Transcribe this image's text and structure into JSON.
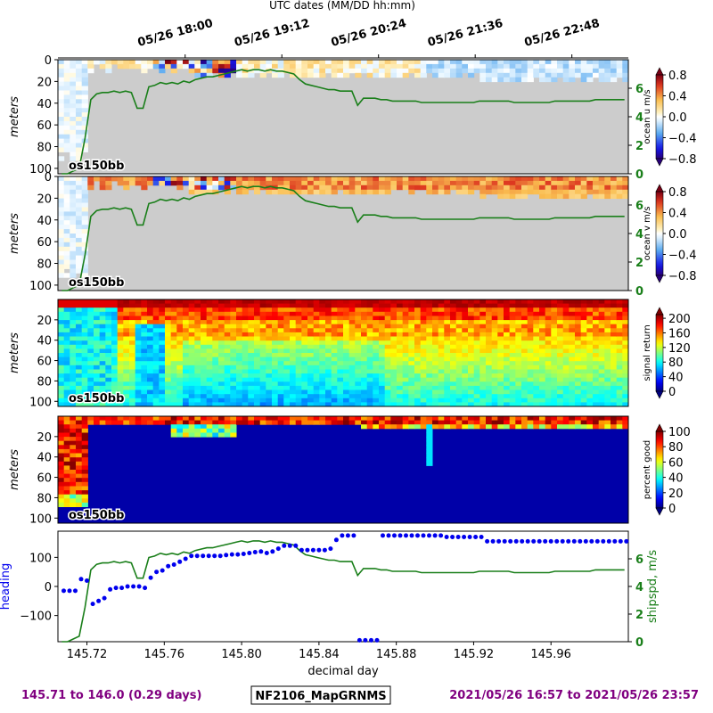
{
  "top_axis": {
    "label": "UTC dates (MM/DD hh:mm)",
    "ticks": [
      {
        "x": 145.7708,
        "label": "05/26 18:00"
      },
      {
        "x": 145.8208,
        "label": "05/26 19:12"
      },
      {
        "x": 145.8708,
        "label": "05/26 20:24"
      },
      {
        "x": 145.9208,
        "label": "05/26 21:36"
      },
      {
        "x": 145.9708,
        "label": "05/26 22:48"
      }
    ]
  },
  "footer": {
    "range_days": "145.71 to 146.0 (0.29 days)",
    "cruise": "NF2106_MapGRNMS",
    "range_dates": "2021/05/26 16:57 to 2021/05/26 23:57"
  },
  "colors": {
    "ship_speed": "#1a7f1a",
    "heading": "#0000ee",
    "no_data": "#cccccc",
    "footer_text": "#800080"
  },
  "chart_data": [
    {
      "type": "heatmap",
      "panel": "ocean_u",
      "instrument_label": "os150bb",
      "ylabel": "meters",
      "yticks": [
        0,
        20,
        40,
        60,
        80,
        100
      ],
      "ylim": [
        105,
        0
      ],
      "xlim": [
        145.705,
        146.0
      ],
      "colorbar": {
        "label": "ocean u m/s",
        "ticks": [
          "0.8",
          "0.4",
          "0.0",
          "−0.4",
          "−0.8"
        ],
        "range": [
          -0.8,
          0.8
        ],
        "colormap": "blue-white-red"
      },
      "right_axis": {
        "label": "",
        "ticks": [
          "0",
          "2",
          "4",
          "6"
        ],
        "range": [
          0,
          8
        ]
      }
    },
    {
      "type": "heatmap",
      "panel": "ocean_v",
      "instrument_label": "os150bb",
      "ylabel": "meters",
      "yticks": [
        0,
        20,
        40,
        60,
        80,
        100
      ],
      "ylim": [
        105,
        0
      ],
      "xlim": [
        145.705,
        146.0
      ],
      "colorbar": {
        "label": "ocean v m/s",
        "ticks": [
          "0.8",
          "0.4",
          "0.0",
          "−0.4",
          "−0.8"
        ],
        "range": [
          -0.8,
          0.8
        ],
        "colormap": "blue-white-red"
      },
      "right_axis": {
        "label": "",
        "ticks": [
          "0",
          "2",
          "4",
          "6"
        ],
        "range": [
          0,
          8
        ]
      }
    },
    {
      "type": "heatmap",
      "panel": "signal_return",
      "instrument_label": "os150bb",
      "ylabel": "meters",
      "yticks": [
        20,
        40,
        60,
        80,
        100
      ],
      "ylim": [
        105,
        0
      ],
      "xlim": [
        145.705,
        146.0
      ],
      "colorbar": {
        "label": "signal return",
        "ticks": [
          "200",
          "160",
          "120",
          "80",
          "40",
          "0"
        ],
        "range": [
          0,
          210
        ],
        "colormap": "jet"
      }
    },
    {
      "type": "heatmap",
      "panel": "percent_good",
      "instrument_label": "os150bb",
      "ylabel": "meters",
      "yticks": [
        20,
        40,
        60,
        80,
        100
      ],
      "ylim": [
        105,
        0
      ],
      "xlim": [
        145.705,
        146.0
      ],
      "colorbar": {
        "label": "percent good",
        "ticks": [
          "100",
          "80",
          "60",
          "40",
          "20",
          "0"
        ],
        "range": [
          0,
          100
        ],
        "colormap": "jet"
      }
    },
    {
      "type": "scatter",
      "panel": "heading_shipspd",
      "xlabel": "decimal day",
      "xticks": [
        "145.72",
        "145.76",
        "145.80",
        "145.84",
        "145.88",
        "145.92",
        "145.96"
      ],
      "xtick_values": [
        145.72,
        145.76,
        145.8,
        145.84,
        145.88,
        145.92,
        145.96
      ],
      "xlim": [
        145.705,
        146.0
      ],
      "ylabel": "heading",
      "yticks": [
        "100",
        "0",
        "−100"
      ],
      "ytick_values": [
        100,
        0,
        -100
      ],
      "ylim": [
        -190,
        190
      ],
      "right_ylabel": "shipspd, m/s",
      "right_yticks": [
        "0",
        "2",
        "4",
        "6"
      ],
      "right_ylim": [
        0,
        8
      ],
      "series": [
        {
          "name": "heading",
          "style": "dots",
          "x": [
            145.708,
            145.711,
            145.714,
            145.717,
            145.72,
            145.723,
            145.726,
            145.729,
            145.732,
            145.735,
            145.738,
            145.741,
            145.744,
            145.747,
            145.75,
            145.753,
            145.756,
            145.759,
            145.762,
            145.765,
            145.768,
            145.771,
            145.774,
            145.777,
            145.78,
            145.783,
            145.786,
            145.789,
            145.792,
            145.795,
            145.798,
            145.801,
            145.804,
            145.807,
            145.81,
            145.813,
            145.816,
            145.819,
            145.822,
            145.825,
            145.828,
            145.831,
            145.834,
            145.837,
            145.84,
            145.843,
            145.846,
            145.849,
            145.852,
            145.855,
            145.858,
            145.861,
            145.864,
            145.867,
            145.87,
            145.873,
            145.876,
            145.879,
            145.882,
            145.885,
            145.888,
            145.891,
            145.894,
            145.897,
            145.9,
            145.903,
            145.906,
            145.909,
            145.912,
            145.915,
            145.918,
            145.921,
            145.924,
            145.927,
            145.93,
            145.933,
            145.936,
            145.939,
            145.942,
            145.945,
            145.948,
            145.951,
            145.954,
            145.957,
            145.96,
            145.963,
            145.966,
            145.969,
            145.972,
            145.975,
            145.978,
            145.981,
            145.984,
            145.987,
            145.99,
            145.993,
            145.996,
            145.999
          ],
          "y": [
            -15,
            -15,
            -15,
            25,
            20,
            -60,
            -50,
            -40,
            -10,
            -5,
            -5,
            0,
            0,
            0,
            -5,
            30,
            50,
            55,
            70,
            75,
            85,
            95,
            105,
            105,
            105,
            105,
            105,
            105,
            108,
            110,
            110,
            112,
            115,
            118,
            120,
            115,
            120,
            130,
            140,
            140,
            140,
            125,
            125,
            125,
            125,
            125,
            130,
            160,
            175,
            175,
            175,
            -185,
            -185,
            -185,
            -185,
            175,
            175,
            175,
            175,
            175,
            175,
            175,
            175,
            175,
            175,
            175,
            170,
            170,
            170,
            170,
            170,
            170,
            170,
            155,
            155,
            155,
            155,
            155,
            155,
            155,
            155,
            155,
            155,
            155,
            155,
            155,
            155,
            155,
            155,
            155,
            155,
            155,
            155,
            155,
            155,
            155,
            155,
            155
          ]
        },
        {
          "name": "shipspd",
          "style": "line",
          "x": [
            145.707,
            145.71,
            145.713,
            145.716,
            145.719,
            145.722,
            145.725,
            145.728,
            145.731,
            145.734,
            145.737,
            145.74,
            145.743,
            145.746,
            145.749,
            145.752,
            145.755,
            145.758,
            145.761,
            145.764,
            145.767,
            145.77,
            145.773,
            145.776,
            145.779,
            145.782,
            145.785,
            145.788,
            145.791,
            145.794,
            145.797,
            145.8,
            145.803,
            145.806,
            145.809,
            145.812,
            145.815,
            145.818,
            145.821,
            145.824,
            145.827,
            145.83,
            145.833,
            145.836,
            145.839,
            145.842,
            145.845,
            145.848,
            145.851,
            145.854,
            145.857,
            145.86,
            145.863,
            145.866,
            145.869,
            145.872,
            145.875,
            145.878,
            145.881,
            145.884,
            145.887,
            145.89,
            145.893,
            145.896,
            145.899,
            145.902,
            145.905,
            145.908,
            145.911,
            145.914,
            145.917,
            145.92,
            145.923,
            145.926,
            145.929,
            145.932,
            145.935,
            145.938,
            145.941,
            145.944,
            145.947,
            145.95,
            145.953,
            145.956,
            145.959,
            145.962,
            145.965,
            145.968,
            145.971,
            145.974,
            145.977,
            145.98,
            145.983,
            145.986,
            145.989,
            145.992,
            145.995,
            145.998
          ],
          "y": [
            0,
            0,
            0.2,
            0.4,
            2.5,
            5.2,
            5.6,
            5.7,
            5.7,
            5.8,
            5.7,
            5.8,
            5.7,
            4.6,
            4.6,
            6.1,
            6.2,
            6.4,
            6.3,
            6.4,
            6.3,
            6.5,
            6.4,
            6.6,
            6.7,
            6.8,
            6.8,
            6.9,
            7.0,
            7.1,
            7.2,
            7.3,
            7.2,
            7.3,
            7.3,
            7.2,
            7.3,
            7.2,
            7.2,
            7.1,
            7.0,
            6.6,
            6.3,
            6.2,
            6.1,
            6.0,
            5.9,
            5.9,
            5.8,
            5.8,
            5.8,
            4.8,
            5.3,
            5.3,
            5.3,
            5.2,
            5.2,
            5.1,
            5.1,
            5.1,
            5.1,
            5.1,
            5.0,
            5.0,
            5.0,
            5.0,
            5.0,
            5.0,
            5.0,
            5.0,
            5.0,
            5.0,
            5.1,
            5.1,
            5.1,
            5.1,
            5.1,
            5.1,
            5.0,
            5.0,
            5.0,
            5.0,
            5.0,
            5.0,
            5.0,
            5.1,
            5.1,
            5.1,
            5.1,
            5.1,
            5.1,
            5.1,
            5.2,
            5.2,
            5.2,
            5.2,
            5.2,
            5.2
          ]
        }
      ]
    }
  ]
}
